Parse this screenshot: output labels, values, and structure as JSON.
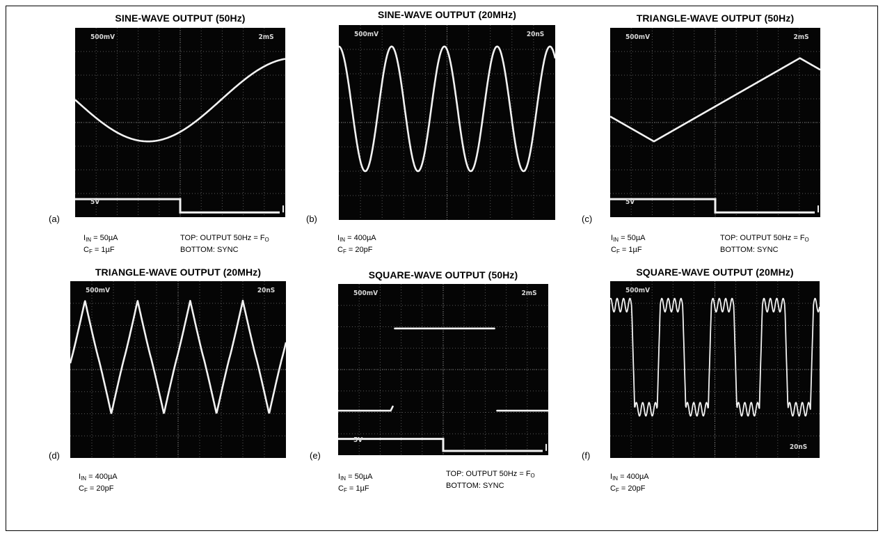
{
  "panels": [
    {
      "id": "a",
      "title": "SINE-WAVE OUTPUT (50Hz)",
      "label": "(a)",
      "scope": {
        "tl": "500mV",
        "tr": "2mS",
        "bl": "5V",
        "br": ""
      },
      "waveform": "sine",
      "cycles": 0.72,
      "sync": true,
      "left_notes": [
        {
          "sym": "I",
          "sub": "IN",
          "rest": " = 50µA"
        },
        {
          "sym": "C",
          "sub": "F",
          "rest": " = 1µF"
        }
      ],
      "right_notes": [
        {
          "text": "TOP:  OUTPUT 50Hz = F",
          "sub": "O"
        },
        {
          "text": "BOTTOM:  SYNC",
          "sub": ""
        }
      ]
    },
    {
      "id": "b",
      "title": "SINE-WAVE OUTPUT (20MHz)",
      "label": "(b)",
      "scope": {
        "tl": "500mV",
        "tr": "20nS",
        "bl": "",
        "br": ""
      },
      "waveform": "sine",
      "cycles": 4.1,
      "sync": false,
      "left_notes": [
        {
          "sym": "I",
          "sub": "IN",
          "rest": " = 400µA"
        },
        {
          "sym": "C",
          "sub": "F",
          "rest": " = 20pF"
        }
      ],
      "right_notes": []
    },
    {
      "id": "c",
      "title": "TRIANGLE-WAVE OUTPUT (50Hz)",
      "label": "(c)",
      "scope": {
        "tl": "500mV",
        "tr": "2mS",
        "bl": "5V",
        "br": ""
      },
      "waveform": "triangle",
      "cycles": 0.72,
      "sync": true,
      "left_notes": [
        {
          "sym": "I",
          "sub": "IN",
          "rest": " = 50µA"
        },
        {
          "sym": "C",
          "sub": "F",
          "rest": " = 1µF"
        }
      ],
      "right_notes": [
        {
          "text": "TOP:  OUTPUT 50Hz = F",
          "sub": "O"
        },
        {
          "text": "BOTTOM:  SYNC",
          "sub": ""
        }
      ]
    },
    {
      "id": "d",
      "title": "TRIANGLE-WAVE OUTPUT (20MHz)",
      "label": "(d)",
      "scope": {
        "tl": "500mV",
        "tr": "20nS",
        "bl": "",
        "br": ""
      },
      "waveform": "triangle",
      "cycles": 4.1,
      "sync": false,
      "left_notes": [
        {
          "sym": "I",
          "sub": "IN",
          "rest": " = 400µA"
        },
        {
          "sym": "C",
          "sub": "F",
          "rest": " = 20pF"
        }
      ],
      "right_notes": []
    },
    {
      "id": "e",
      "title": "SQUARE-WAVE OUTPUT (50Hz)",
      "label": "(e)",
      "scope": {
        "tl": "500mV",
        "tr": "2mS",
        "bl": "5V",
        "br": ""
      },
      "waveform": "square",
      "cycles": 0.72,
      "sync": true,
      "left_notes": [
        {
          "sym": "I",
          "sub": "IN",
          "rest": " = 50µA"
        },
        {
          "sym": "C",
          "sub": "F",
          "rest": " = 1µF"
        }
      ],
      "right_notes": [
        {
          "text": "TOP:  OUTPUT 50Hz = F",
          "sub": "O"
        },
        {
          "text": "BOTTOM:  SYNC",
          "sub": ""
        }
      ]
    },
    {
      "id": "f",
      "title": "SQUARE-WAVE OUTPUT (20MHz)",
      "label": "(f)",
      "scope": {
        "tl": "500mV",
        "tr": "",
        "bl": "",
        "br": "20nS"
      },
      "waveform": "square-ringing",
      "cycles": 4.1,
      "sync": false,
      "left_notes": [
        {
          "sym": "I",
          "sub": "IN",
          "rest": " = 400µA"
        },
        {
          "sym": "C",
          "sub": "F",
          "rest": " = 20pF"
        }
      ],
      "right_notes": []
    }
  ],
  "colors": {
    "scope_bg": "#050505",
    "grid": "#5a5a5a",
    "trace": "#f2f2f2",
    "label": "#d8d8d8"
  }
}
